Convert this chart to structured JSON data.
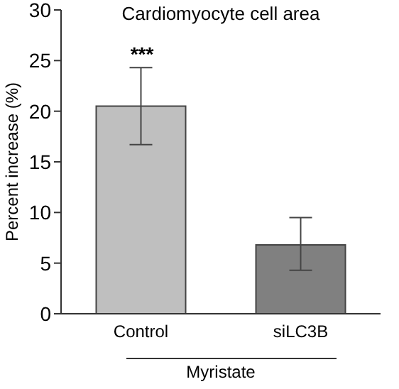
{
  "chart_data": {
    "type": "bar",
    "title": "Cardiomyocyte cell area",
    "xlabel": "Myristate",
    "ylabel": "Percent increase (%)",
    "categories": [
      "Control",
      "siLC3B"
    ],
    "values": [
      20.5,
      6.8
    ],
    "colors": [
      "#bfbfbf",
      "#808080"
    ],
    "errors": [
      [
        16.7,
        24.3
      ],
      [
        4.3,
        9.5
      ]
    ],
    "annotations": [
      "***"
    ],
    "ylim": [
      0,
      30
    ],
    "yticks": [
      0,
      5,
      10,
      15,
      20,
      25,
      30
    ],
    "grid": false,
    "legend": false
  }
}
